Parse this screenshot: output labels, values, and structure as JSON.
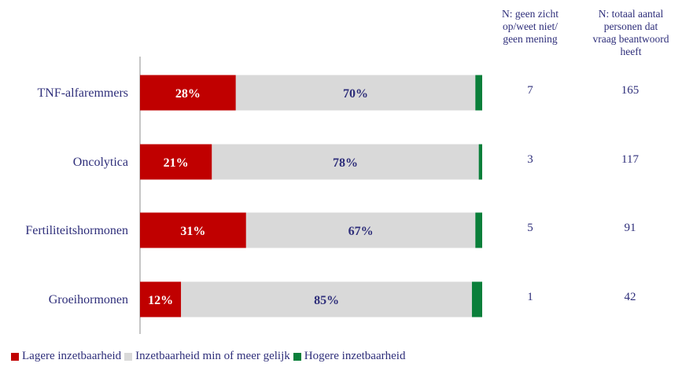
{
  "chart_data": {
    "type": "bar",
    "orientation": "horizontal",
    "stacked": true,
    "categories": [
      "TNF-alfaremmers",
      "Oncolytica",
      "Fertiliteitshormonen",
      "Groeihormonen"
    ],
    "series": [
      {
        "name": "Lagere inzetbaarheid",
        "values": [
          28,
          21,
          31,
          12
        ],
        "labels": [
          "28%",
          "21%",
          "31%",
          "12%"
        ],
        "color": "#c00000",
        "label_color": "#ffffff"
      },
      {
        "name": "Inzetbaarheid min of meer gelijk",
        "values": [
          70,
          78,
          67,
          85
        ],
        "labels": [
          "70%",
          "78%",
          "67%",
          "85%"
        ],
        "color": "#d9d9d9",
        "label_color": "#2e2e7a"
      },
      {
        "name": "Hogere inzetbaarheid",
        "values": [
          2,
          1,
          2,
          3
        ],
        "color": "#0a7f3a"
      }
    ],
    "xlim": [
      0,
      100
    ],
    "grid": false,
    "legend_position": "bottom-left"
  },
  "columns": {
    "n_unknown": {
      "header": "N: geen zicht\nop/weet niet/\ngeen mening",
      "values": [
        "7",
        "3",
        "5",
        "1"
      ]
    },
    "n_total": {
      "header": "N: totaal aantal\npersonen dat\nvraag beantwoord\nheeft",
      "values": [
        "165",
        "117",
        "91",
        "42"
      ]
    }
  }
}
